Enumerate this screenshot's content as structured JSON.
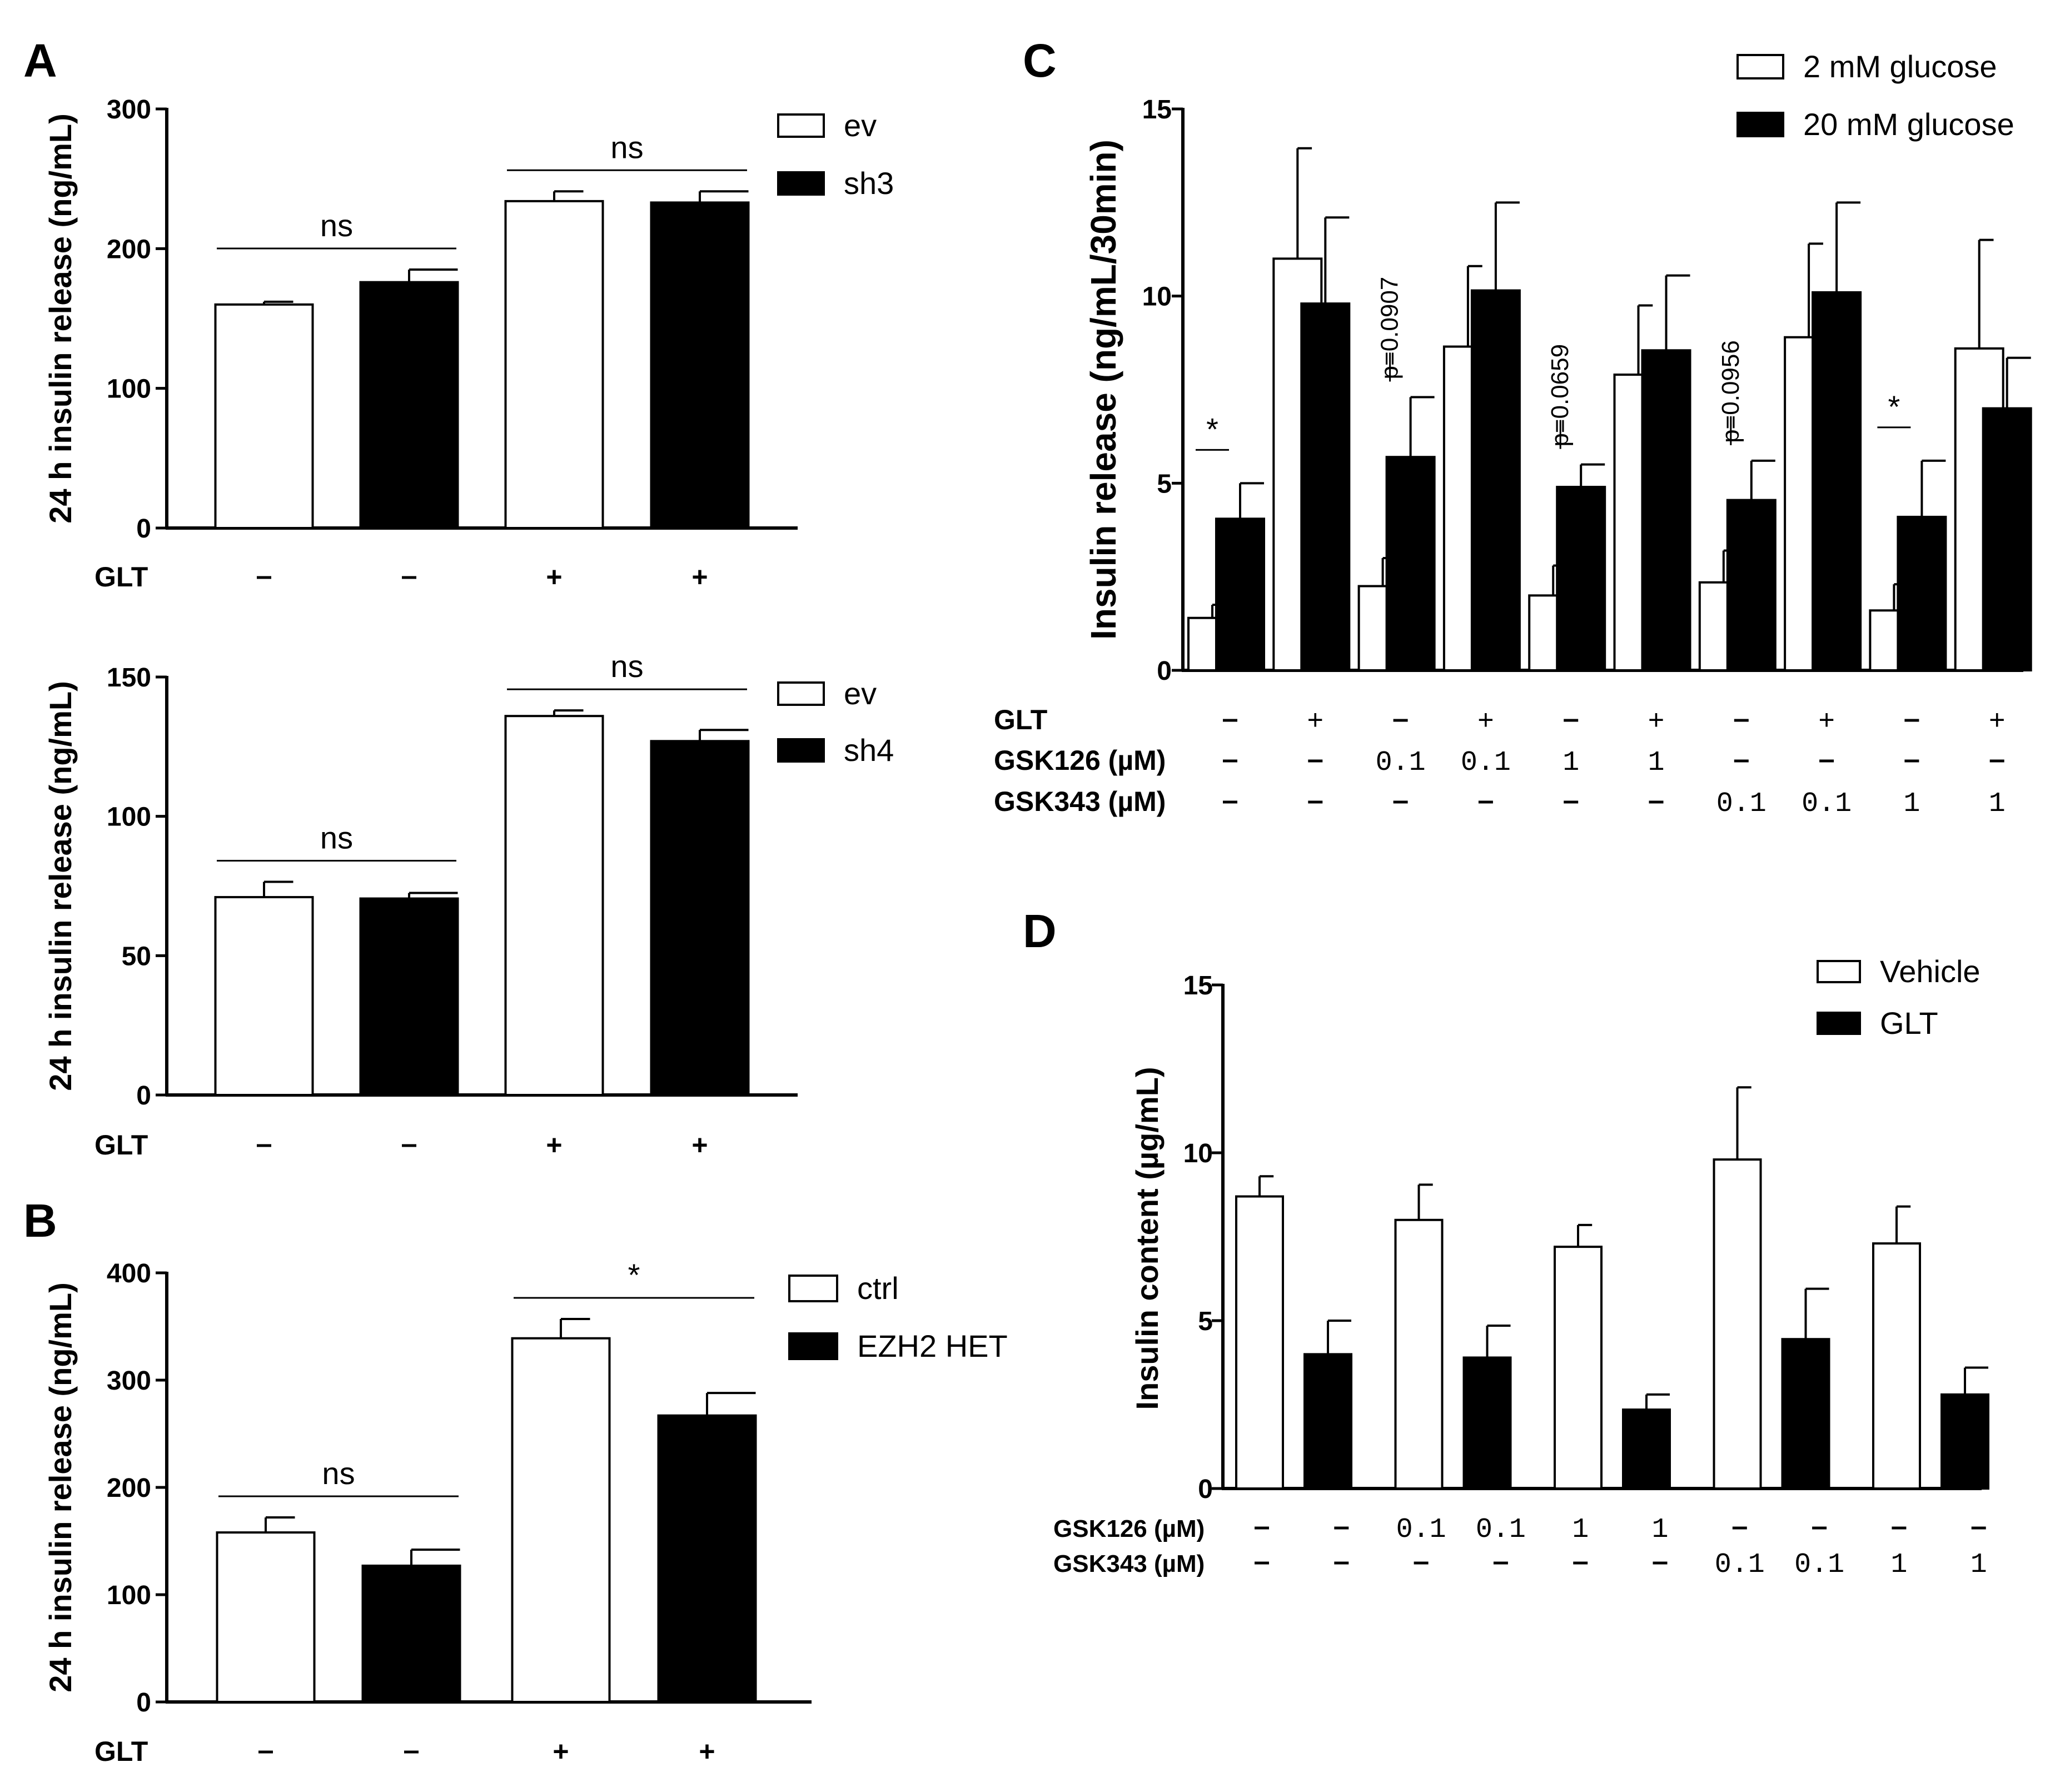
{
  "chart_data": [
    {
      "panel": "A",
      "type": "bar",
      "ylabel": "24 h insulin release (ng/mL)",
      "ylim": [
        0,
        300
      ],
      "yticks": [
        0,
        100,
        200,
        300
      ],
      "condition_rows": [
        {
          "label": "GLT",
          "values": [
            "-",
            "-",
            "+",
            "+"
          ]
        }
      ],
      "series": [
        {
          "name": "ev",
          "color": "#ffffff",
          "values": [
            160,
            176,
            234,
            233
          ],
          "errors": [
            2,
            9,
            7,
            8
          ]
        },
        {
          "name": "sh3",
          "color": "#000000"
        }
      ],
      "bar_series_index": [
        0,
        1,
        0,
        1
      ],
      "annotations": [
        {
          "text": "ns",
          "bars": [
            0,
            1
          ]
        },
        {
          "text": "ns",
          "bars": [
            2,
            3
          ]
        }
      ]
    },
    {
      "panel": "",
      "type": "bar",
      "ylabel": "24 h insulin release (ng/mL)",
      "ylim": [
        0,
        150
      ],
      "yticks": [
        0,
        50,
        100,
        150
      ],
      "condition_rows": [
        {
          "label": "GLT",
          "values": [
            "-",
            "-",
            "+",
            "+"
          ]
        }
      ],
      "series": [
        {
          "name": "ev",
          "color": "#ffffff",
          "values": [
            71,
            70.5,
            136,
            127
          ],
          "errors": [
            5.5,
            2,
            2,
            4
          ]
        },
        {
          "name": "sh4",
          "color": "#000000"
        }
      ],
      "bar_series_index": [
        0,
        1,
        0,
        1
      ],
      "annotations": [
        {
          "text": "ns",
          "bars": [
            0,
            1
          ]
        },
        {
          "text": "ns",
          "bars": [
            2,
            3
          ]
        }
      ]
    },
    {
      "panel": "B",
      "type": "bar",
      "ylabel": "24 h insulin release (ng/mL)",
      "ylim": [
        0,
        400
      ],
      "yticks": [
        0,
        100,
        200,
        300,
        400
      ],
      "condition_rows": [
        {
          "label": "GLT",
          "values": [
            "-",
            "-",
            "+",
            "+"
          ]
        }
      ],
      "series": [
        {
          "name": "ctrl",
          "color": "#ffffff",
          "values": [
            158,
            127,
            339,
            267
          ],
          "errors": [
            14,
            15,
            18,
            21
          ]
        },
        {
          "name": "EZH2 HET",
          "color": "#000000"
        }
      ],
      "bar_series_index": [
        0,
        1,
        0,
        1
      ],
      "annotations": [
        {
          "text": "ns",
          "bars": [
            0,
            1
          ]
        },
        {
          "text": "*",
          "bars": [
            2,
            3
          ]
        }
      ]
    },
    {
      "panel": "C",
      "type": "bar",
      "ylabel": "Insulin release (ng/mL/30min)",
      "ylim": [
        0,
        15
      ],
      "yticks": [
        0,
        5,
        10,
        15
      ],
      "condition_rows": [
        {
          "label": "GLT",
          "values": [
            "-",
            "+",
            "-",
            "+",
            "-",
            "+",
            "-",
            "+",
            "-",
            "+"
          ]
        },
        {
          "label": "GSK126 (µM)",
          "values": [
            "-",
            "-",
            "0.1",
            "0.1",
            "1",
            "1",
            "-",
            "-",
            "-",
            "-"
          ]
        },
        {
          "label": "GSK343 (µM)",
          "values": [
            "-",
            "-",
            "-",
            "-",
            "-",
            "-",
            "0.1",
            "0.1",
            "1",
            "1"
          ]
        }
      ],
      "series": [
        {
          "name": "2 mM glucose",
          "color": "#ffffff",
          "values": [
            1.4,
            11.0,
            2.25,
            8.65,
            2.0,
            7.9,
            2.35,
            8.9,
            1.6,
            8.6
          ],
          "errors": [
            0.35,
            2.95,
            0.75,
            2.15,
            0.8,
            1.85,
            0.85,
            2.5,
            0.7,
            2.9
          ]
        },
        {
          "name": "20 mM glucose",
          "color": "#000000",
          "values": [
            4.05,
            9.8,
            5.7,
            10.15,
            4.9,
            8.55,
            4.55,
            10.1,
            4.1,
            7.0
          ],
          "errors": [
            0.95,
            2.3,
            1.6,
            2.35,
            0.6,
            2.0,
            1.05,
            2.4,
            1.5,
            1.35
          ]
        }
      ],
      "annotations": [
        {
          "text": "*",
          "group": 0
        },
        {
          "text": "p=0.0907",
          "group": 2
        },
        {
          "text": "p=0.0659",
          "group": 4
        },
        {
          "text": "p=0.0956",
          "group": 6
        },
        {
          "text": "*",
          "group": 8
        }
      ]
    },
    {
      "panel": "D",
      "type": "bar",
      "ylabel": "Insulin content (µg/mL)",
      "ylim": [
        0,
        15
      ],
      "yticks": [
        0,
        5,
        10,
        15
      ],
      "condition_rows": [
        {
          "label": "GSK126 (µM)",
          "values": [
            "-",
            "-",
            "0.1",
            "0.1",
            "1",
            "1",
            "-",
            "-",
            "-",
            "-"
          ]
        },
        {
          "label": "GSK343 (µM)",
          "values": [
            "-",
            "-",
            "-",
            "-",
            "-",
            "-",
            "0.1",
            "0.1",
            "1",
            "1"
          ]
        }
      ],
      "series": [
        {
          "name": "Vehicle",
          "color": "#ffffff",
          "values": [
            8.7,
            8.0,
            7.2,
            9.8,
            7.3
          ],
          "errors": [
            0.6,
            1.05,
            0.65,
            2.15,
            1.1
          ]
        },
        {
          "name": "GLT",
          "color": "#000000",
          "values": [
            4.0,
            3.9,
            2.35,
            4.45,
            2.8
          ],
          "errors": [
            1.0,
            0.95,
            0.45,
            1.5,
            0.8
          ]
        }
      ]
    }
  ]
}
